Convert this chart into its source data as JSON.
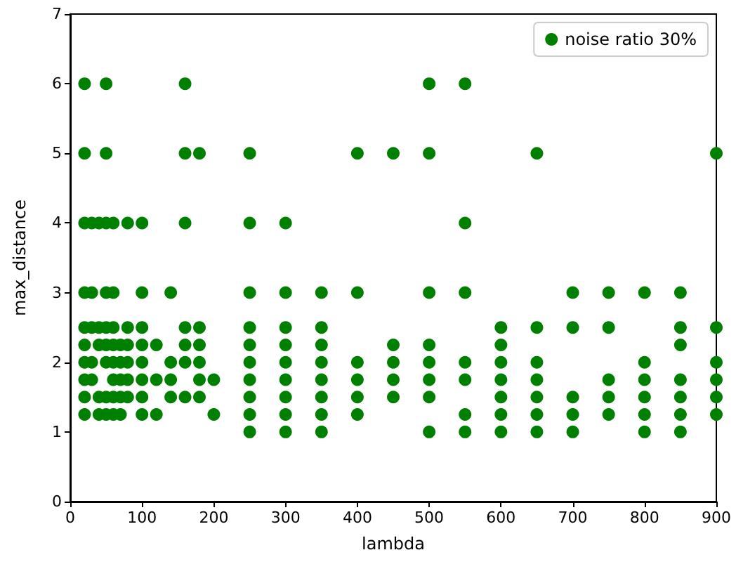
{
  "chart_data": {
    "type": "scatter",
    "xlabel": "lambda",
    "ylabel": "max_distance",
    "xlim": [
      0,
      900
    ],
    "xticks": [
      0,
      100,
      200,
      300,
      400,
      500,
      600,
      700,
      800,
      900
    ],
    "ylim": [
      0,
      7
    ],
    "yticks": [
      0,
      1,
      2,
      3,
      4,
      5,
      6,
      7
    ],
    "grid": false,
    "legend": "top right",
    "marker": "circle",
    "series": [
      {
        "name": "noise ratio 30%",
        "color": "#008000",
        "x": [
          20,
          20,
          20,
          20,
          20,
          20,
          20,
          20,
          20,
          20,
          30,
          30,
          30,
          30,
          30,
          40,
          40,
          40,
          40,
          40,
          50,
          50,
          50,
          50,
          50,
          50,
          50,
          50,
          50,
          60,
          60,
          60,
          60,
          60,
          60,
          60,
          60,
          70,
          70,
          70,
          70,
          70,
          80,
          80,
          80,
          80,
          80,
          80,
          100,
          100,
          100,
          100,
          100,
          100,
          100,
          100,
          120,
          120,
          120,
          140,
          140,
          140,
          140,
          160,
          160,
          160,
          160,
          160,
          160,
          160,
          180,
          180,
          180,
          180,
          180,
          180,
          200,
          200,
          250,
          250,
          250,
          250,
          250,
          250,
          250,
          250,
          250,
          250,
          300,
          300,
          300,
          300,
          300,
          300,
          300,
          300,
          300,
          350,
          350,
          350,
          350,
          350,
          350,
          350,
          350,
          400,
          400,
          400,
          400,
          400,
          400,
          450,
          450,
          450,
          450,
          450,
          500,
          500,
          500,
          500,
          500,
          500,
          500,
          500,
          550,
          550,
          550,
          550,
          550,
          550,
          550,
          600,
          600,
          600,
          600,
          600,
          600,
          600,
          650,
          650,
          650,
          650,
          650,
          650,
          650,
          700,
          700,
          700,
          700,
          700,
          750,
          750,
          750,
          750,
          750,
          800,
          800,
          800,
          800,
          800,
          800,
          850,
          850,
          850,
          850,
          850,
          850,
          850,
          900,
          900,
          900,
          900,
          900,
          900
        ],
        "values": [
          6,
          5,
          4,
          3,
          2.5,
          2.25,
          2,
          1.75,
          1.5,
          1.25,
          4,
          3,
          2.5,
          2,
          1.75,
          4,
          2.5,
          2.25,
          1.5,
          1.25,
          6,
          5,
          4,
          3,
          2.5,
          2.25,
          2,
          1.5,
          1.25,
          4,
          3,
          2.5,
          2.25,
          2,
          1.75,
          1.5,
          1.25,
          2.25,
          2,
          1.75,
          1.5,
          1.25,
          4,
          2.5,
          2.25,
          2,
          1.75,
          1.5,
          4,
          3,
          2.5,
          2.25,
          2,
          1.75,
          1.5,
          1.25,
          2.25,
          1.75,
          1.25,
          3,
          2,
          1.75,
          1.5,
          6,
          5,
          4,
          2.5,
          2.25,
          2,
          1.5,
          5,
          2.5,
          2.25,
          2,
          1.75,
          1.5,
          1.75,
          1.25,
          5,
          4,
          3,
          2.5,
          2.25,
          2,
          1.75,
          1.5,
          1.25,
          1,
          4,
          3,
          2.5,
          2.25,
          2,
          1.75,
          1.5,
          1.25,
          1,
          3,
          2.5,
          2.25,
          2,
          1.75,
          1.5,
          1.25,
          1,
          5,
          3,
          2,
          1.75,
          1.5,
          1.25,
          5,
          2.25,
          2,
          1.75,
          1.5,
          6,
          5,
          3,
          2.25,
          2,
          1.75,
          1.5,
          1,
          6,
          4,
          3,
          2,
          1.75,
          1.25,
          1,
          2.5,
          2.25,
          2,
          1.75,
          1.5,
          1.25,
          1,
          5,
          2.5,
          2,
          1.75,
          1.5,
          1.25,
          1,
          3,
          2.5,
          1.5,
          1.25,
          1,
          3,
          2.5,
          1.75,
          1.5,
          1.25,
          3,
          2,
          1.75,
          1.5,
          1.25,
          1,
          3,
          2.5,
          2.25,
          1.75,
          1.5,
          1.25,
          1,
          5,
          2.5,
          2,
          1.75,
          1.5,
          1.25
        ]
      }
    ]
  }
}
